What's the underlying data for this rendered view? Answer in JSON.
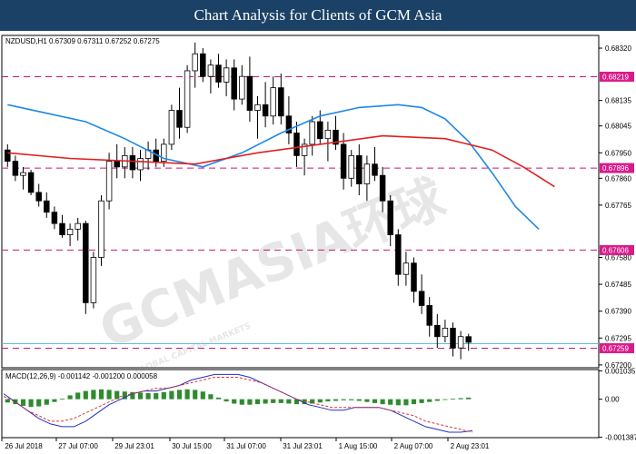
{
  "banner": {
    "title": "Chart Analysis for Clients of GCM Asia"
  },
  "colors": {
    "banner": "#1b4266",
    "ma_fast": "#1e88e5",
    "ma_slow": "#e02020",
    "level": "#c2187a",
    "tag_current": "#d91c8c",
    "macd_hist": "#2e8b2e",
    "macd_line": "#2030c0",
    "macd_signal": "#e03030",
    "current_line": "#5bc0de"
  },
  "chart_data": {
    "type": "candlestick",
    "symbol_header": "NZDUSD,H1  0.67309 0.67311 0.67252 0.67275",
    "macd_header": "MACD(12,26,9) -0.001142 -0.001200 0.000058",
    "x_tick_labels": [
      "26 Jul 2018",
      "27 Jul 07:00",
      "29 Jul 23:01",
      "30 Jul 15:00",
      "31 Jul 07:00",
      "31 Jul 23:01",
      "1 Aug 15:00",
      "2 Aug 07:00",
      "2 Aug 23:01"
    ],
    "y_tick_labels": [
      "0.68320",
      "0.68135",
      "0.68045",
      "0.67950",
      "0.67860",
      "0.67765",
      "0.67580",
      "0.67485",
      "0.67390",
      "0.67295",
      "0.67200"
    ],
    "y_ticks": [
      0.6832,
      0.68135,
      0.68045,
      0.6795,
      0.6786,
      0.67765,
      0.6758,
      0.67485,
      0.6739,
      0.67295,
      0.672
    ],
    "ylim": [
      0.6719,
      0.68365
    ],
    "horizontal_levels": [
      {
        "value": 0.68219,
        "label": "0.68219"
      },
      {
        "value": 0.67896,
        "label": "0.67896"
      },
      {
        "value": 0.67606,
        "label": "0.67606"
      },
      {
        "value": 0.67259,
        "label": "0.67259"
      }
    ],
    "current_price": 0.67275,
    "ohlc": [
      [
        0.6796,
        0.6798,
        0.679,
        0.6792
      ],
      [
        0.6792,
        0.6794,
        0.6785,
        0.6787
      ],
      [
        0.6787,
        0.679,
        0.6782,
        0.6788
      ],
      [
        0.6788,
        0.6789,
        0.678,
        0.6781
      ],
      [
        0.6781,
        0.6784,
        0.6776,
        0.6778
      ],
      [
        0.6778,
        0.6781,
        0.6772,
        0.6774
      ],
      [
        0.6774,
        0.6776,
        0.6768,
        0.677
      ],
      [
        0.677,
        0.6773,
        0.6765,
        0.6766
      ],
      [
        0.6766,
        0.677,
        0.6762,
        0.6768
      ],
      [
        0.6768,
        0.6772,
        0.6764,
        0.677
      ],
      [
        0.677,
        0.6771,
        0.6738,
        0.6742
      ],
      [
        0.6742,
        0.676,
        0.674,
        0.6758
      ],
      [
        0.6758,
        0.678,
        0.6755,
        0.6778
      ],
      [
        0.6778,
        0.6795,
        0.6775,
        0.6792
      ],
      [
        0.6792,
        0.6798,
        0.6786,
        0.679
      ],
      [
        0.679,
        0.6797,
        0.6786,
        0.6794
      ],
      [
        0.6794,
        0.6797,
        0.6786,
        0.6789
      ],
      [
        0.6789,
        0.6796,
        0.6785,
        0.6793
      ],
      [
        0.6793,
        0.6799,
        0.6789,
        0.6796
      ],
      [
        0.6796,
        0.68,
        0.679,
        0.6792
      ],
      [
        0.6792,
        0.68,
        0.679,
        0.6798
      ],
      [
        0.6798,
        0.6812,
        0.6796,
        0.681
      ],
      [
        0.681,
        0.6818,
        0.68,
        0.6804
      ],
      [
        0.6804,
        0.6826,
        0.6802,
        0.6824
      ],
      [
        0.6824,
        0.6834,
        0.6818,
        0.683
      ],
      [
        0.683,
        0.6832,
        0.682,
        0.6822
      ],
      [
        0.6822,
        0.6828,
        0.6816,
        0.6826
      ],
      [
        0.6826,
        0.683,
        0.6818,
        0.682
      ],
      [
        0.682,
        0.6828,
        0.6815,
        0.6825
      ],
      [
        0.6825,
        0.6828,
        0.681,
        0.6814
      ],
      [
        0.6814,
        0.6826,
        0.6812,
        0.6822
      ],
      [
        0.6822,
        0.6829,
        0.6806,
        0.681
      ],
      [
        0.681,
        0.6815,
        0.68,
        0.6812
      ],
      [
        0.6812,
        0.682,
        0.6804,
        0.6808
      ],
      [
        0.6808,
        0.6822,
        0.6805,
        0.6818
      ],
      [
        0.6818,
        0.6823,
        0.6805,
        0.6808
      ],
      [
        0.6808,
        0.6815,
        0.6798,
        0.6802
      ],
      [
        0.6802,
        0.6806,
        0.679,
        0.6794
      ],
      [
        0.6794,
        0.68,
        0.6787,
        0.6798
      ],
      [
        0.6798,
        0.6808,
        0.6794,
        0.6806
      ],
      [
        0.6806,
        0.681,
        0.6798,
        0.68
      ],
      [
        0.68,
        0.6806,
        0.6792,
        0.6803
      ],
      [
        0.6803,
        0.6808,
        0.6796,
        0.6798
      ],
      [
        0.6798,
        0.6802,
        0.6782,
        0.6786
      ],
      [
        0.6786,
        0.6796,
        0.6783,
        0.6794
      ],
      [
        0.6794,
        0.6798,
        0.678,
        0.6784
      ],
      [
        0.6784,
        0.6794,
        0.6778,
        0.6791
      ],
      [
        0.6791,
        0.6797,
        0.6785,
        0.6787
      ],
      [
        0.6787,
        0.679,
        0.6774,
        0.6778
      ],
      [
        0.6778,
        0.678,
        0.6762,
        0.6766
      ],
      [
        0.6766,
        0.6768,
        0.6748,
        0.6752
      ],
      [
        0.6752,
        0.676,
        0.6748,
        0.6756
      ],
      [
        0.6756,
        0.6758,
        0.6742,
        0.6746
      ],
      [
        0.6746,
        0.6752,
        0.6738,
        0.6741
      ],
      [
        0.6741,
        0.6744,
        0.673,
        0.6734
      ],
      [
        0.6734,
        0.6738,
        0.6726,
        0.673
      ],
      [
        0.673,
        0.6736,
        0.6728,
        0.6733
      ],
      [
        0.6733,
        0.6735,
        0.6723,
        0.6726
      ],
      [
        0.6726,
        0.6732,
        0.6722,
        0.673
      ],
      [
        0.673,
        0.6731,
        0.6725,
        0.6728
      ]
    ],
    "sma_blue": [
      [
        0,
        0.6812
      ],
      [
        5,
        0.6809
      ],
      [
        10,
        0.6806
      ],
      [
        15,
        0.68
      ],
      [
        20,
        0.6793
      ],
      [
        25,
        0.679
      ],
      [
        30,
        0.6795
      ],
      [
        35,
        0.6802
      ],
      [
        40,
        0.6808
      ],
      [
        45,
        0.6811
      ],
      [
        50,
        0.6812
      ],
      [
        53,
        0.6811
      ],
      [
        56,
        0.6807
      ],
      [
        59,
        0.6799
      ],
      [
        62,
        0.6788
      ],
      [
        65,
        0.6776
      ],
      [
        68,
        0.6768
      ]
    ],
    "sma_red": [
      [
        0,
        0.6795
      ],
      [
        8,
        0.6793
      ],
      [
        16,
        0.6792
      ],
      [
        24,
        0.6791
      ],
      [
        32,
        0.6795
      ],
      [
        40,
        0.6798
      ],
      [
        48,
        0.6801
      ],
      [
        56,
        0.68
      ],
      [
        62,
        0.6796
      ],
      [
        66,
        0.679
      ],
      [
        70,
        0.6783
      ]
    ],
    "macd": {
      "ylim": [
        -0.0014,
        0.00108
      ],
      "y_tick_labels": [
        "0.001035",
        "0.00",
        "-0.001387"
      ],
      "y_ticks": [
        0.001035,
        0.0,
        -0.001387
      ],
      "histogram": [
        -0.00012,
        -0.00018,
        -0.00024,
        -0.00028,
        -0.00026,
        -0.0002,
        -0.0001,
        2e-05,
        0.00014,
        0.00024,
        0.0003,
        0.00034,
        0.00036,
        0.00034,
        0.0003,
        0.00028,
        0.00026,
        0.00024,
        0.00022,
        0.00022,
        0.00026,
        0.0003,
        0.00034,
        0.00036,
        0.00034,
        0.00028,
        0.00018,
        6e-05,
        -8e-05,
        -0.00016,
        -0.0002,
        -0.0002,
        -0.00018,
        -0.00016,
        -0.00014,
        -0.00014,
        -0.00016,
        -0.00018,
        -0.00018,
        -0.00016,
        -0.00012,
        -8e-05,
        -6e-05,
        -4e-05,
        -4e-05,
        -6e-05,
        -0.0001,
        -0.00014,
        -0.00018,
        -0.0002,
        -0.00022,
        -0.00022,
        -0.00018,
        -0.00014,
        -0.0001,
        -6e-05,
        -2e-05,
        2e-05,
        4e-05,
        6e-05
      ],
      "macd_line": [
        0.0002,
        -0.0001,
        -0.0004,
        -0.0007,
        -0.0009,
        -0.001,
        -0.001,
        -0.0008,
        -0.0005,
        -0.0002,
        0.0,
        0.0002,
        0.0003,
        0.0003,
        0.0004,
        0.0005,
        0.0007,
        0.0008,
        0.0009,
        0.0009,
        0.0009,
        0.0008,
        0.0006,
        0.0004,
        0.0002,
        0.0,
        -0.0002,
        -0.0003,
        -0.0004,
        -0.0004,
        -0.0003,
        -0.0003,
        -0.0003,
        -0.0004,
        -0.0006,
        -0.0008,
        -0.001,
        -0.0011,
        -0.0012,
        -0.0012,
        -0.00115
      ],
      "signal_line": [
        0.0001,
        -0.0001,
        -0.0004,
        -0.0006,
        -0.0008,
        -0.0008,
        -0.0007,
        -0.0005,
        -0.0003,
        -0.0001,
        0.0001,
        0.0002,
        0.0003,
        0.0004,
        0.0004,
        0.0005,
        0.0006,
        0.0007,
        0.0008,
        0.0008,
        0.0008,
        0.0007,
        0.0006,
        0.0004,
        0.0002,
        0.0,
        -0.0001,
        -0.0002,
        -0.0003,
        -0.0003,
        -0.0003,
        -0.0003,
        -0.0003,
        -0.0004,
        -0.0005,
        -0.0006,
        -0.0008,
        -0.0009,
        -0.001,
        -0.0011,
        -0.0012
      ]
    }
  },
  "watermark": {
    "main": "GCMASIA环球",
    "sub": "GLOBAL CAPITAL MARKETS"
  }
}
